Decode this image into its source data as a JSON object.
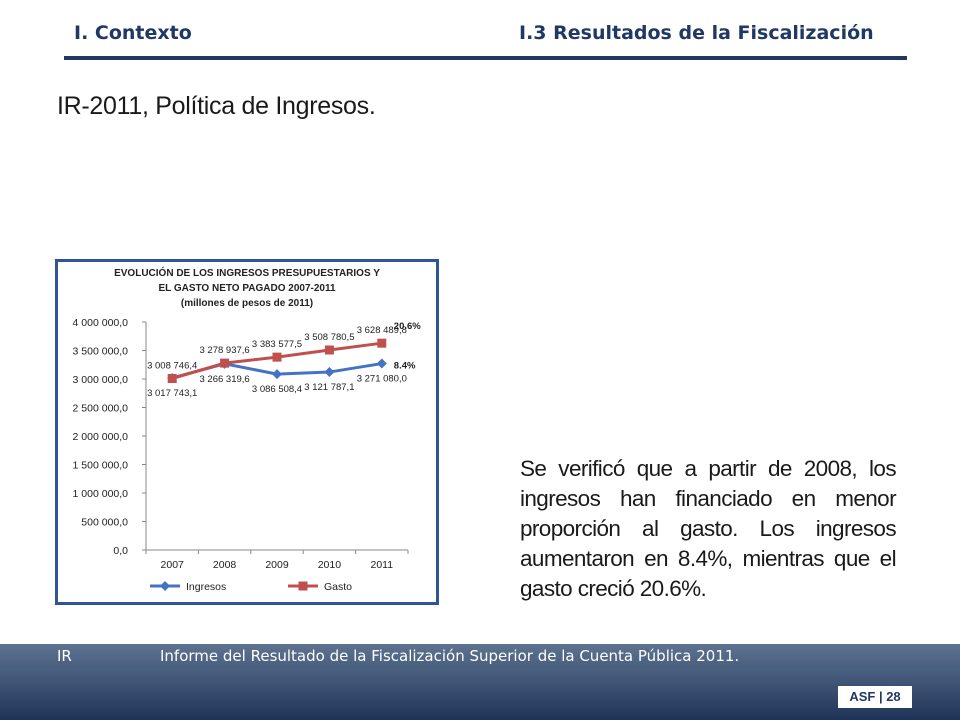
{
  "header": {
    "section": "I. Contexto",
    "subsection": "I.3 Resultados de la Fiscalización"
  },
  "slide": {
    "title": "IR-2011, Política de Ingresos.",
    "body": "Se verificó que a partir de 2008, los ingresos han financiado en menor proporción al gasto. Los ingresos aumentaron en 8.4%, mientras que el gasto creció 20.6%."
  },
  "footer": {
    "label": "IR",
    "text": "Informe del Resultado de la Fiscalización Superior de la Cuenta Pública 2011.",
    "badge": "ASF | 28"
  },
  "colors": {
    "header": "#1f3864",
    "ingresos": "#4472c4",
    "gasto": "#c0504d",
    "chart_border": "#2f5597"
  },
  "chart_data": {
    "type": "line",
    "title_lines": [
      "EVOLUCIÓN DE LOS INGRESOS PRESUPUESTARIOS Y",
      "EL GASTO NETO PAGADO 2007-2011",
      "(millones de pesos de 2011)"
    ],
    "categories": [
      "2007",
      "2008",
      "2009",
      "2010",
      "2011"
    ],
    "ylim": [
      0,
      4000000
    ],
    "yticks": [
      "0,0",
      "500 000,0",
      "1 000 000,0",
      "1 500 000,0",
      "2 000 000,0",
      "2 500 000,0",
      "3 000 000,0",
      "3 500 000,0",
      "4 000 000,0"
    ],
    "series": [
      {
        "name": "Ingresos",
        "color": "#4472c4",
        "marker": "diamond",
        "values": [
          3017743.1,
          3266319.6,
          3086508.4,
          3121787.1,
          3271080.0
        ],
        "labels": [
          "3 017 743,1",
          "3 266 319,6",
          "3 086 508,4",
          "3 121 787,1",
          "3 271 080,0"
        ],
        "end_annotation": "8.4%"
      },
      {
        "name": "Gasto",
        "color": "#c0504d",
        "marker": "square",
        "values": [
          3008746.4,
          3278937.6,
          3383577.5,
          3508780.5,
          3628489.8
        ],
        "labels": [
          "3 008 746,4",
          "3 278 937,6",
          "3 383 577,5",
          "3 508 780,5",
          "3 628 489,8"
        ],
        "end_annotation": "20.6%"
      }
    ],
    "legend": "bottom",
    "grid": false
  }
}
